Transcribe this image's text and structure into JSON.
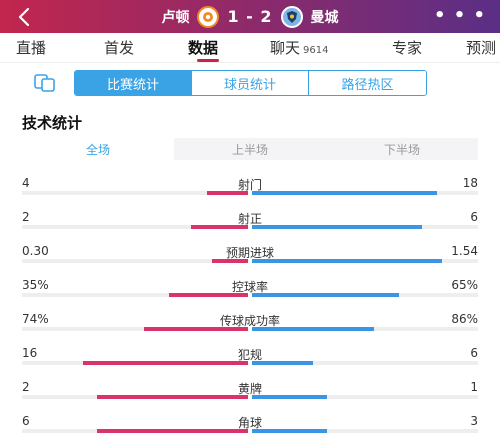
{
  "header": {
    "home_team": "卢顿",
    "score": "1 - 2",
    "away_team": "曼城",
    "colors": {
      "gradient_start": "#c2264d",
      "gradient_end": "#5a2f86"
    },
    "icons": {
      "back": "back-chevron-icon",
      "more": "more-dots-icon"
    }
  },
  "tabs": [
    {
      "label": "直播"
    },
    {
      "label": "首发"
    },
    {
      "label": "数据",
      "active": true
    },
    {
      "label": "聊天",
      "count": "9614"
    },
    {
      "label": "专家"
    },
    {
      "label": "预测"
    }
  ],
  "segments": {
    "icon": "compare-icon",
    "items": [
      {
        "label": "比赛统计",
        "active": true
      },
      {
        "label": "球员统计"
      },
      {
        "label": "路径热区"
      }
    ]
  },
  "section_title": "技术统计",
  "periods": [
    {
      "label": "全场",
      "active": true
    },
    {
      "label": "上半场"
    },
    {
      "label": "下半场"
    }
  ],
  "stats": [
    {
      "label": "射门",
      "home": "4",
      "away": "18",
      "home_ratio": 0.18,
      "away_ratio": 0.82
    },
    {
      "label": "射正",
      "home": "2",
      "away": "6",
      "home_ratio": 0.25,
      "away_ratio": 0.75
    },
    {
      "label": "预期进球",
      "home": "0.30",
      "away": "1.54",
      "home_ratio": 0.16,
      "away_ratio": 0.84
    },
    {
      "label": "控球率",
      "home": "35%",
      "away": "65%",
      "home_ratio": 0.35,
      "away_ratio": 0.65
    },
    {
      "label": "传球成功率",
      "home": "74%",
      "away": "86%",
      "home_ratio": 0.46,
      "away_ratio": 0.54
    },
    {
      "label": "犯规",
      "home": "16",
      "away": "6",
      "home_ratio": 0.73,
      "away_ratio": 0.27
    },
    {
      "label": "黄牌",
      "home": "2",
      "away": "1",
      "home_ratio": 0.67,
      "away_ratio": 0.33
    },
    {
      "label": "角球",
      "home": "6",
      "away": "3",
      "home_ratio": 0.67,
      "away_ratio": 0.33
    }
  ],
  "stat_colors": {
    "home": "#d8336b",
    "away": "#3a95e4"
  }
}
